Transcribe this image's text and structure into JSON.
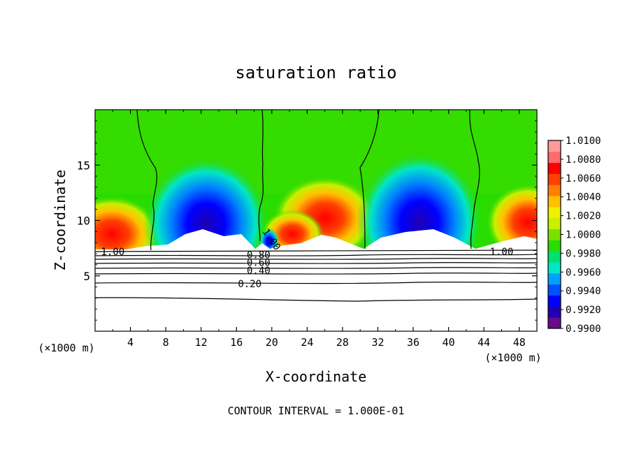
{
  "chart_data": {
    "type": "heatmap",
    "title": "saturation ratio",
    "xlabel": "X-coordinate",
    "ylabel": "Z-coordinate",
    "x_unit": "(×1000 m)",
    "x_unit_right": "(×1000 m)",
    "xlim": [
      0,
      50
    ],
    "ylim": [
      0,
      20
    ],
    "x_ticks": [
      4,
      8,
      12,
      16,
      20,
      24,
      28,
      32,
      36,
      40,
      44,
      48
    ],
    "y_ticks": [
      5,
      10,
      15
    ],
    "contour_interval_text": "CONTOUR INTERVAL = 1.000E-01",
    "colorbar": {
      "colors": [
        "#6a0a8a",
        "#2000b0",
        "#0000ff",
        "#0050ff",
        "#00a0ff",
        "#00e6c8",
        "#00e070",
        "#28dc00",
        "#7ae000",
        "#c8f000",
        "#f0f000",
        "#ffc000",
        "#ff8000",
        "#ff4000",
        "#ff0000",
        "#ff6a6a",
        "#ff9a9a"
      ],
      "labels": [
        "0.9900",
        "0.9920",
        "0.9940",
        "0.9960",
        "0.9980",
        "1.0000",
        "1.0020",
        "1.0040",
        "1.0060",
        "1.0080",
        "1.0100"
      ]
    },
    "contour_labels": [
      {
        "text": "1.00",
        "x": 2.0,
        "z": 7.2
      },
      {
        "text": "1.00",
        "x": 20.0,
        "z": 8.3
      },
      {
        "text": "1.00",
        "x": 46.0,
        "z": 7.2
      },
      {
        "text": "0.80",
        "x": 18.5,
        "z": 6.9
      },
      {
        "text": "0.60",
        "x": 18.5,
        "z": 6.2
      },
      {
        "text": "0.40",
        "x": 18.5,
        "z": 5.5
      },
      {
        "text": "0.20",
        "x": 17.5,
        "z": 4.3
      }
    ]
  }
}
